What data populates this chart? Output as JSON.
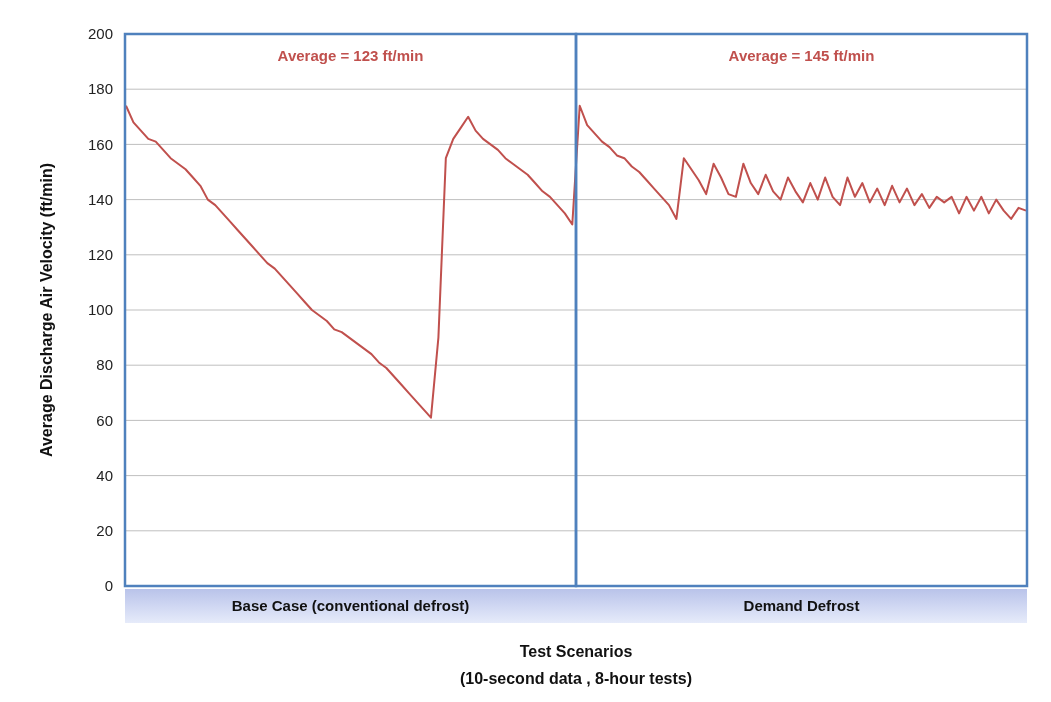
{
  "chart_data": {
    "type": "line",
    "ylabel": "Average Discharge Air Velocity (ft/min)",
    "xlabel": "Test Scenarios\n(10-second data , 8-hour tests)",
    "categories": [
      null,
      null,
      null,
      null,
      null,
      null,
      null,
      null,
      null,
      null,
      null,
      null,
      null,
      null,
      null,
      null,
      null,
      null,
      null,
      null,
      null,
      null,
      null,
      null,
      null,
      null,
      null,
      null,
      null,
      null,
      null,
      null,
      null,
      null,
      null,
      null,
      null,
      null,
      null,
      null,
      null,
      null,
      null,
      null,
      null,
      null,
      null,
      null,
      null,
      null,
      null,
      null,
      null,
      null,
      null,
      null,
      null,
      null,
      null,
      null,
      null,
      null,
      null,
      null,
      null,
      null,
      null,
      null,
      null,
      null,
      null,
      null,
      null,
      null,
      null,
      null,
      null,
      null,
      null,
      null,
      null,
      null,
      null,
      null,
      null,
      null,
      null,
      null,
      null,
      null,
      null,
      null,
      null,
      null,
      null,
      null,
      null,
      null,
      null,
      null,
      null,
      null,
      null,
      null,
      null,
      null,
      null,
      null,
      null,
      null,
      null,
      null,
      null,
      null,
      null,
      null,
      null,
      null,
      null,
      null,
      null,
      null
    ],
    "series": [
      {
        "color": "#c0504d",
        "values": [
          174,
          168,
          165,
          162,
          161,
          158,
          155,
          153,
          151,
          148,
          145,
          140,
          138,
          135,
          132,
          129,
          126,
          123,
          120,
          117,
          115,
          112,
          109,
          106,
          103,
          100,
          98,
          96,
          93,
          92,
          90,
          88,
          86,
          84,
          81,
          79,
          76,
          73,
          70,
          67,
          64,
          61,
          90,
          155,
          162,
          166,
          170,
          165,
          162,
          160,
          158,
          155,
          153,
          151,
          149,
          146,
          143,
          141,
          138,
          135,
          131,
          174,
          167,
          164,
          161,
          159,
          156,
          155,
          152,
          150,
          147,
          144,
          141,
          138,
          133,
          155,
          151,
          147,
          142,
          153,
          148,
          142,
          141,
          153,
          146,
          142,
          149,
          143,
          140,
          148,
          143,
          139,
          146,
          140,
          148,
          141,
          138,
          148,
          141,
          146,
          139,
          144,
          138,
          145,
          139,
          144,
          138,
          142,
          137,
          141,
          139,
          141,
          135,
          141,
          136,
          141,
          135,
          140,
          136,
          133,
          137,
          136
        ]
      }
    ],
    "ylim": [
      0,
      200
    ],
    "yticks": [
      0,
      20,
      40,
      60,
      80,
      100,
      120,
      140,
      160,
      180,
      200
    ],
    "grid": "y",
    "annotations": [
      "Average = 123 ft/min",
      "Average = 145 ft/min",
      "Base Case (conventional defrost)",
      "Demand Defrost"
    ]
  }
}
